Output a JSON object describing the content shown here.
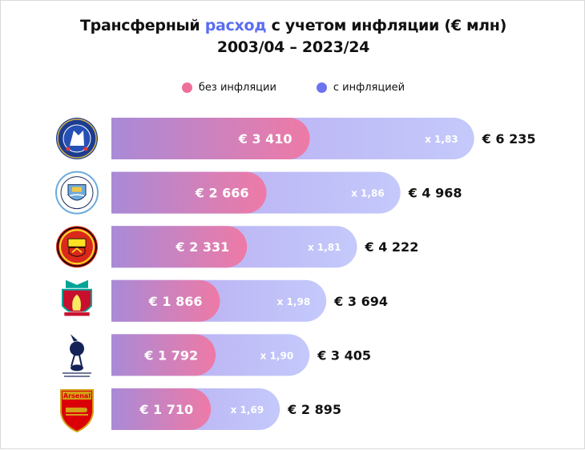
{
  "title": {
    "part1": "Трансферный ",
    "highlight": "расход",
    "part2": " с учетом инфляции (€ млн)",
    "line2": "2003/04 – 2023/24"
  },
  "colors": {
    "nominal_start": "#a98ad7",
    "nominal_end": "#ee7aa6",
    "inflation_start": "#b6a7ef",
    "inflation_end": "#c4c9fb",
    "legend_nominal": "#ee6f98",
    "legend_inflation": "#6b73ef",
    "highlight": "#5a6ef0"
  },
  "legend": {
    "nominal": "без инфляции",
    "inflation": "с инфляцией"
  },
  "chart_data": {
    "type": "bar",
    "orientation": "horizontal",
    "categories": [
      "Chelsea",
      "Manchester City",
      "Manchester United",
      "Liverpool",
      "Tottenham Hotspur",
      "Arsenal"
    ],
    "series": [
      {
        "name": "без инфляции",
        "values": [
          3410,
          2666,
          2331,
          1866,
          1792,
          1710
        ],
        "labels": [
          "€ 3 410",
          "€ 2 666",
          "€ 2 331",
          "€ 1 866",
          "€ 1 792",
          "€ 1 710"
        ]
      },
      {
        "name": "с инфляцией",
        "values": [
          6235,
          4968,
          4222,
          3694,
          3405,
          2895
        ],
        "labels": [
          "€ 6 235",
          "€ 4 968",
          "€ 4 222",
          "€ 3 694",
          "€ 3 405",
          "€ 2 895"
        ]
      }
    ],
    "multipliers": [
      "x 1,83",
      "x 1,86",
      "x 1,81",
      "x 1,98",
      "x 1,90",
      "x 1,69"
    ],
    "logos": [
      {
        "name": "chelsea-logo",
        "text": "CHELSEA"
      },
      {
        "name": "manchester-city-logo",
        "text": "MANCHESTER CITY"
      },
      {
        "name": "manchester-united-logo",
        "text": "MANCHESTER UNITED"
      },
      {
        "name": "liverpool-logo",
        "text": "LIVERPOOL"
      },
      {
        "name": "tottenham-logo",
        "text": "TOTTENHAM HOTSPUR"
      },
      {
        "name": "arsenal-logo",
        "text": "Arsenal"
      }
    ]
  }
}
